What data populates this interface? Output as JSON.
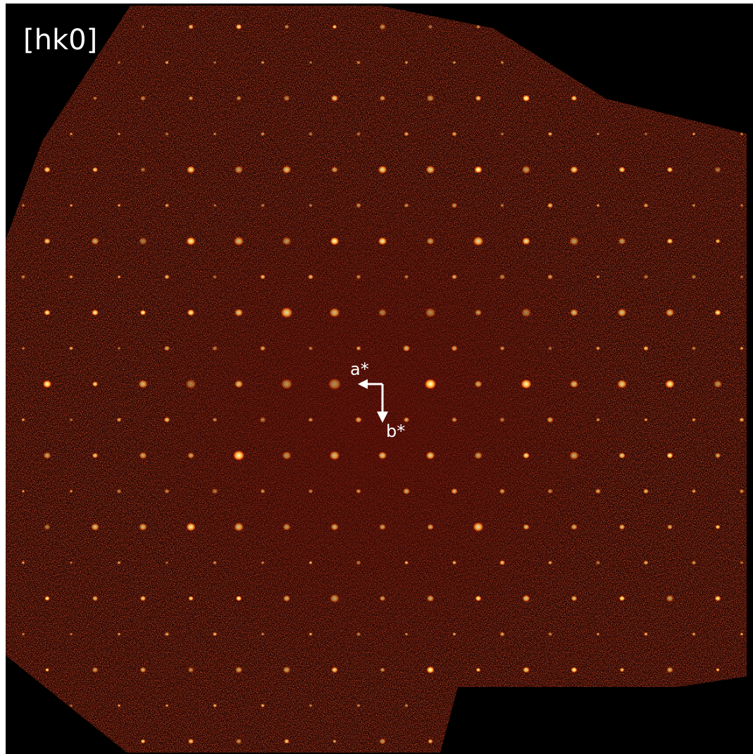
{
  "label": "[hk0]",
  "axes": {
    "a": "a*",
    "b": "b*"
  }
}
